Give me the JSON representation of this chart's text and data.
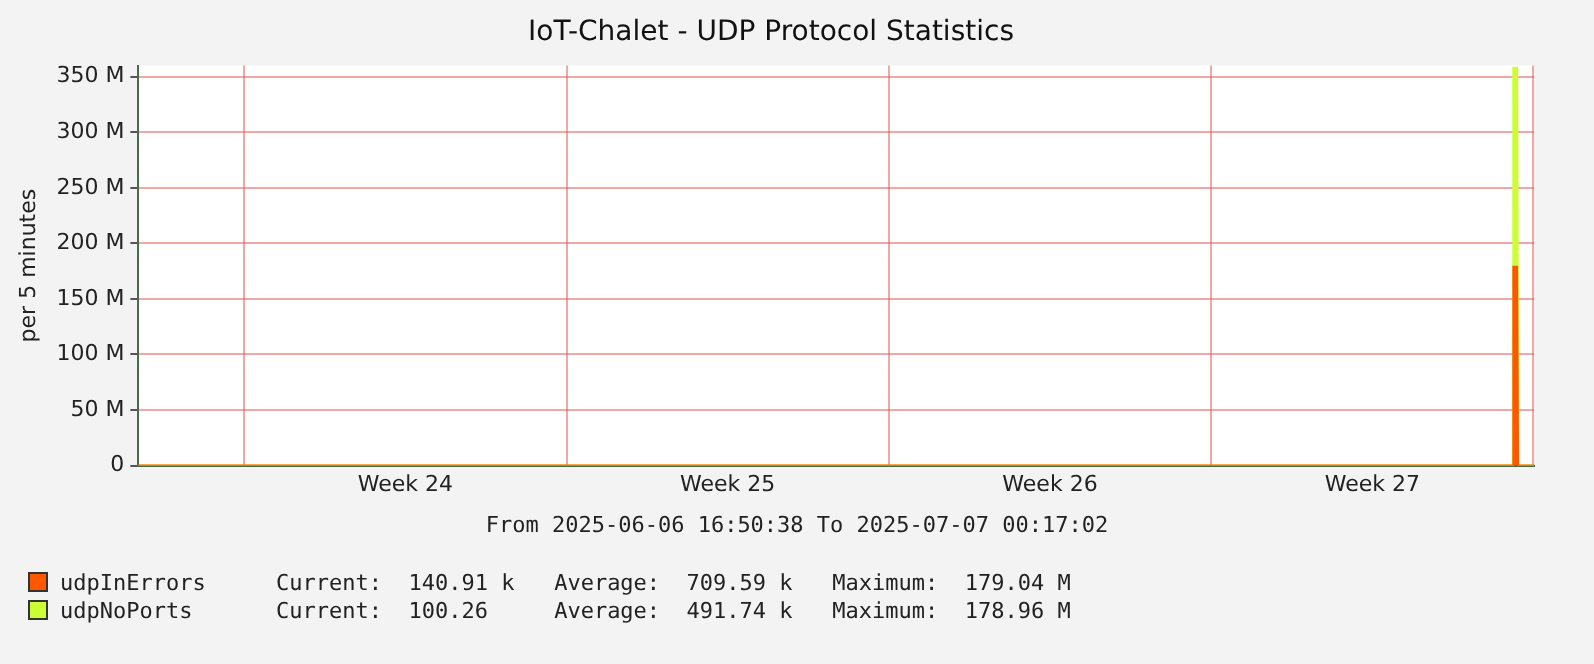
{
  "chart_data": {
    "type": "area",
    "title": "IoT-Chalet - UDP Protocol Statistics",
    "ylabel": "per 5 minutes",
    "stacked": true,
    "x": [
      "2025-06-06T16:50",
      "2025-07-06T13:00",
      "2025-07-06T13:30",
      "2025-07-06T15:30",
      "2025-07-06T16:00",
      "2025-07-07T00:17"
    ],
    "series": [
      {
        "name": "udpInErrors",
        "color": "#ff5700",
        "values": [
          0,
          0,
          179.04,
          179.04,
          0,
          0
        ]
      },
      {
        "name": "udpNoPorts",
        "color": "#ccff33",
        "values": [
          0,
          0,
          178.96,
          178.96,
          0,
          0
        ]
      }
    ],
    "xlim": [
      "2025-06-06T16:50",
      "2025-07-07T00:17"
    ],
    "xticks": [
      {
        "value": "2025-06-09",
        "label": null
      },
      {
        "value": "2025-06-12T12:00",
        "label": "Week 24"
      },
      {
        "value": "2025-06-16",
        "label": null
      },
      {
        "value": "2025-06-19T12:00",
        "label": "Week 25"
      },
      {
        "value": "2025-06-23",
        "label": null
      },
      {
        "value": "2025-06-26T12:00",
        "label": "Week 26"
      },
      {
        "value": "2025-06-30",
        "label": null
      },
      {
        "value": "2025-07-03T12:00",
        "label": "Week 27"
      },
      {
        "value": "2025-07-07",
        "label": null
      }
    ],
    "ylim": [
      0,
      360
    ],
    "yticks": [
      0,
      {
        "value": 50,
        "label": "50 M"
      },
      {
        "value": 100,
        "label": "100 M"
      },
      {
        "value": 150,
        "label": "150 M"
      },
      {
        "value": 200,
        "label": "200 M"
      },
      {
        "value": 250,
        "label": "250 M"
      },
      {
        "value": 300,
        "label": "300 M"
      },
      {
        "value": 350,
        "label": "350 M"
      }
    ],
    "grid": true,
    "legend": "bottom",
    "annotations": [
      "From 2025-06-06 16:50:38 To 2025-07-07 00:17:02",
      "Current:  140.91 k   Average:  709.59 k   Maximum:  179.04 M",
      "Current:  100.26     Average:  491.74 k   Maximum:  178.96 M"
    ]
  }
}
